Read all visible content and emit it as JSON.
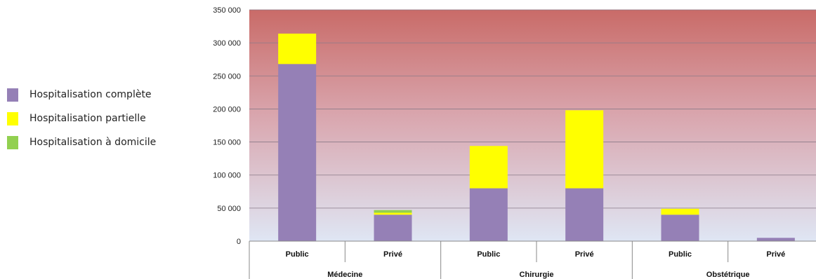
{
  "chart_data": {
    "type": "bar",
    "stacked": true,
    "groups": [
      {
        "label": "Médecine",
        "categories": [
          "Public",
          "Privé"
        ]
      },
      {
        "label": "Chirurgie",
        "categories": [
          "Public",
          "Privé"
        ]
      },
      {
        "label": "Obstétrique",
        "categories": [
          "Public",
          "Privé"
        ]
      }
    ],
    "categories": [
      "Public",
      "Privé",
      "Public",
      "Privé",
      "Public",
      "Privé"
    ],
    "series": [
      {
        "name": "Hospitalisation complète",
        "color": "#9580b6",
        "values": [
          268000,
          40000,
          80000,
          80000,
          40000,
          5000
        ]
      },
      {
        "name": "Hospitalisation partielle",
        "color": "#ffff00",
        "values": [
          46000,
          3000,
          64000,
          118000,
          9000,
          0
        ]
      },
      {
        "name": "Hospitalisation à domicile",
        "color": "#92d050",
        "values": [
          0,
          4000,
          0,
          0,
          0,
          0
        ]
      }
    ],
    "yticks": [
      "0",
      "50 000",
      "100 000",
      "150 000",
      "200 000",
      "250 000",
      "300 000",
      "350 000"
    ],
    "ylim": [
      0,
      350000
    ],
    "legend_position": "left",
    "grid": true
  }
}
